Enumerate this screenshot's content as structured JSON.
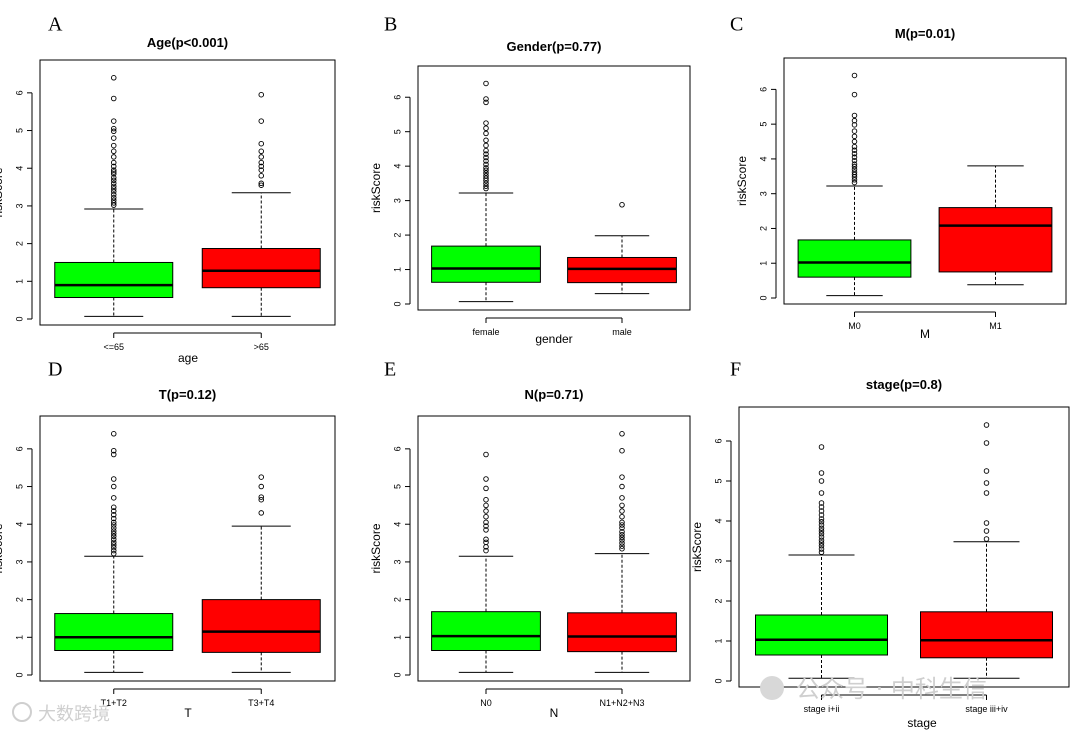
{
  "watermarks": {
    "left": "大数跨境",
    "right": "公众号 · 中科生信"
  },
  "colors": {
    "group1": "#00ff00",
    "group2": "#ff0000",
    "line": "#000000"
  },
  "chart_data": [
    {
      "type": "box",
      "panel": "A",
      "title": "Age(p<0.001)",
      "xlabel": "age",
      "ylabel": "riskScore",
      "ylim": [
        0,
        6.5
      ],
      "yticks": [
        0,
        1,
        2,
        3,
        4,
        5,
        6
      ],
      "categories": [
        "<=65",
        ">65"
      ],
      "boxes": [
        {
          "min": 0.07,
          "q1": 0.57,
          "median": 0.9,
          "q3": 1.5,
          "max": 2.92,
          "outliers": [
            3.02,
            3.08,
            3.15,
            3.22,
            3.3,
            3.38,
            3.45,
            3.52,
            3.6,
            3.68,
            3.75,
            3.85,
            3.9,
            3.95,
            4.05,
            4.15,
            4.3,
            4.45,
            4.6,
            4.8,
            4.98,
            5.05,
            5.25,
            5.85,
            6.4
          ]
        },
        {
          "min": 0.07,
          "q1": 0.83,
          "median": 1.28,
          "q3": 1.87,
          "max": 3.35,
          "outliers": [
            3.55,
            3.6,
            3.8,
            3.95,
            4.05,
            4.15,
            4.3,
            4.45,
            4.65,
            5.25,
            5.95
          ]
        }
      ]
    },
    {
      "type": "box",
      "panel": "B",
      "title": "Gender(p=0.77)",
      "xlabel": "gender",
      "ylabel": "riskScore",
      "ylim": [
        0,
        6.5
      ],
      "yticks": [
        0,
        1,
        2,
        3,
        4,
        5,
        6
      ],
      "categories": [
        "female",
        "male"
      ],
      "boxes": [
        {
          "min": 0.07,
          "q1": 0.63,
          "median": 1.03,
          "q3": 1.68,
          "max": 3.22,
          "outliers": [
            3.35,
            3.42,
            3.5,
            3.58,
            3.65,
            3.72,
            3.8,
            3.88,
            3.95,
            4.05,
            4.15,
            4.25,
            4.35,
            4.45,
            4.6,
            4.75,
            4.95,
            5.1,
            5.25,
            5.85,
            5.95,
            6.4
          ]
        },
        {
          "min": 0.3,
          "q1": 0.62,
          "median": 1.02,
          "q3": 1.35,
          "max": 1.98,
          "outliers": [
            2.88
          ]
        }
      ]
    },
    {
      "type": "box",
      "panel": "C",
      "title": "M(p=0.01)",
      "xlabel": "M",
      "ylabel": "riskScore",
      "ylim": [
        0,
        6.5
      ],
      "yticks": [
        0,
        1,
        2,
        3,
        4,
        5,
        6
      ],
      "categories": [
        "M0",
        "M1"
      ],
      "boxes": [
        {
          "min": 0.07,
          "q1": 0.6,
          "median": 1.02,
          "q3": 1.67,
          "max": 3.22,
          "outliers": [
            3.32,
            3.4,
            3.48,
            3.55,
            3.62,
            3.7,
            3.78,
            3.85,
            3.95,
            4.05,
            4.15,
            4.25,
            4.35,
            4.5,
            4.65,
            4.8,
            4.98,
            5.1,
            5.25,
            5.85,
            6.4
          ]
        },
        {
          "min": 0.38,
          "q1": 0.75,
          "median": 2.08,
          "q3": 2.6,
          "max": 3.8,
          "outliers": []
        }
      ]
    },
    {
      "type": "box",
      "panel": "D",
      "title": "T(p=0.12)",
      "xlabel": "T",
      "ylabel": "riskScore",
      "ylim": [
        0,
        6.5
      ],
      "yticks": [
        0,
        1,
        2,
        3,
        4,
        5,
        6
      ],
      "categories": [
        "T1+T2",
        "T3+T4"
      ],
      "boxes": [
        {
          "min": 0.07,
          "q1": 0.65,
          "median": 1.0,
          "q3": 1.63,
          "max": 3.15,
          "outliers": [
            3.22,
            3.3,
            3.38,
            3.45,
            3.52,
            3.6,
            3.68,
            3.75,
            3.82,
            3.9,
            3.98,
            4.05,
            4.15,
            4.25,
            4.35,
            4.45,
            4.7,
            5.0,
            5.2,
            5.85,
            5.95,
            6.4
          ]
        },
        {
          "min": 0.07,
          "q1": 0.6,
          "median": 1.15,
          "q3": 2.0,
          "max": 3.95,
          "outliers": [
            4.3,
            4.65,
            4.72,
            5.0,
            5.25
          ]
        }
      ]
    },
    {
      "type": "box",
      "panel": "E",
      "title": "N(p=0.71)",
      "xlabel": "N",
      "ylabel": "riskScore",
      "ylim": [
        0,
        6.5
      ],
      "yticks": [
        0,
        1,
        2,
        3,
        4,
        5,
        6
      ],
      "categories": [
        "N0",
        "N1+N2+N3"
      ],
      "boxes": [
        {
          "min": 0.07,
          "q1": 0.65,
          "median": 1.03,
          "q3": 1.68,
          "max": 3.15,
          "outliers": [
            3.3,
            3.4,
            3.52,
            3.6,
            3.85,
            3.95,
            4.05,
            4.2,
            4.35,
            4.5,
            4.65,
            4.95,
            5.2,
            5.85
          ]
        },
        {
          "min": 0.07,
          "q1": 0.62,
          "median": 1.02,
          "q3": 1.65,
          "max": 3.22,
          "outliers": [
            3.35,
            3.42,
            3.5,
            3.58,
            3.65,
            3.72,
            3.8,
            3.9,
            3.98,
            4.05,
            4.2,
            4.35,
            4.5,
            4.7,
            5.0,
            5.25,
            5.95,
            6.4
          ]
        }
      ]
    },
    {
      "type": "box",
      "panel": "F",
      "title": "stage(p=0.8)",
      "xlabel": "stage",
      "ylabel": "riskScore",
      "ylim": [
        0,
        6.5
      ],
      "yticks": [
        0,
        1,
        2,
        3,
        4,
        5,
        6
      ],
      "categories": [
        "stage i+ii",
        "stage iii+iv"
      ],
      "boxes": [
        {
          "min": 0.07,
          "q1": 0.65,
          "median": 1.03,
          "q3": 1.65,
          "max": 3.15,
          "outliers": [
            3.22,
            3.3,
            3.38,
            3.45,
            3.52,
            3.6,
            3.68,
            3.75,
            3.82,
            3.9,
            3.98,
            4.05,
            4.15,
            4.25,
            4.35,
            4.45,
            4.7,
            5.0,
            5.2,
            5.85
          ]
        },
        {
          "min": 0.07,
          "q1": 0.58,
          "median": 1.02,
          "q3": 1.73,
          "max": 3.48,
          "outliers": [
            3.55,
            3.75,
            3.95,
            4.7,
            4.95,
            5.25,
            5.95,
            6.4
          ]
        }
      ]
    }
  ]
}
